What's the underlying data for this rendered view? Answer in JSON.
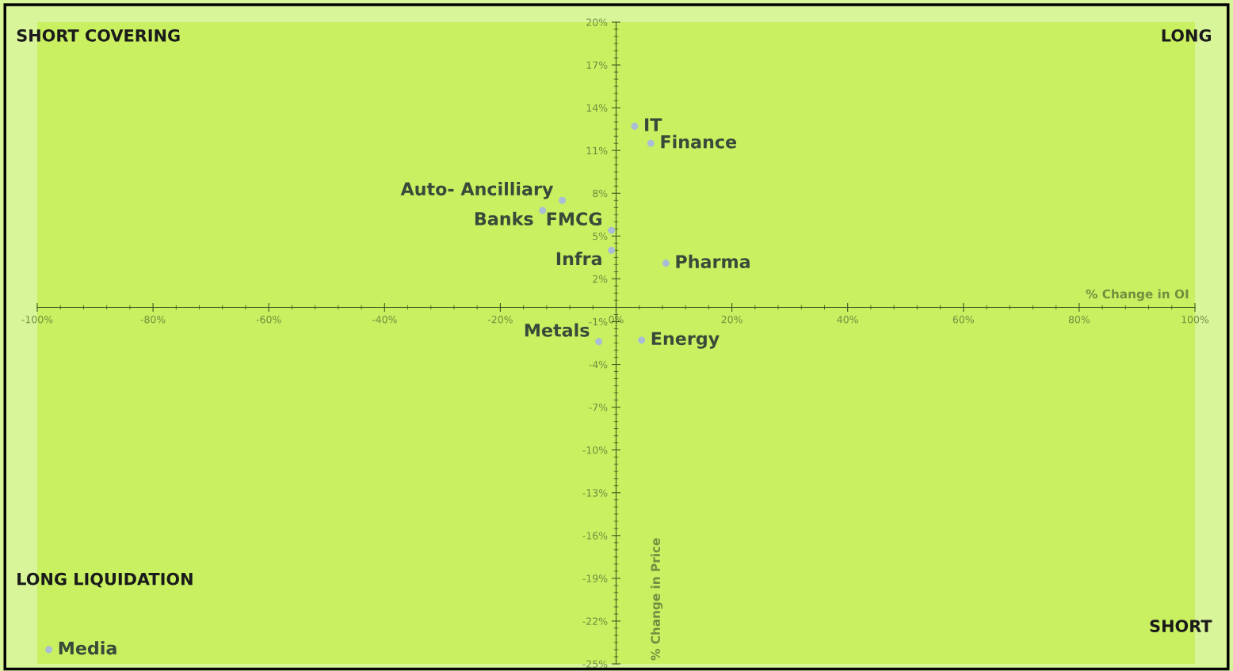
{
  "chart_data": {
    "type": "scatter",
    "xlabel": "% Change in OI",
    "ylabel": "% Change in Price",
    "x": [
      3.2,
      6,
      -9.3,
      -12.7,
      -0.8,
      -0.8,
      8.6,
      -3,
      4.4,
      -98
    ],
    "series": [
      {
        "color": "#a9bdd6",
        "values": [
          12.7,
          11.5,
          7.5,
          6.8,
          5.4,
          4.0,
          3.1,
          -2.4,
          -2.3,
          -24
        ]
      }
    ],
    "value_labels": [
      "IT",
      "Finance",
      "Auto- Ancilliary",
      "Banks",
      "FMCG",
      "Infra",
      "Pharma",
      "Metals",
      "Energy",
      "Media"
    ],
    "marker": "circle",
    "grid": false,
    "legend": false,
    "xlim": [
      -100,
      100
    ],
    "ylim": [
      -25,
      20
    ],
    "xticks": [
      {
        "value": -100,
        "label": "-100%"
      },
      {
        "value": -80,
        "label": "-80%"
      },
      {
        "value": -60,
        "label": "-60%"
      },
      {
        "value": -40,
        "label": "-40%"
      },
      {
        "value": -20,
        "label": "-20%"
      },
      {
        "value": 0,
        "label": "0%"
      },
      {
        "value": 20,
        "label": "20%"
      },
      {
        "value": 40,
        "label": "40%"
      },
      {
        "value": 60,
        "label": "60%"
      },
      {
        "value": 80,
        "label": "80%"
      },
      {
        "value": 100,
        "label": "100%"
      }
    ],
    "yticks": [
      {
        "value": 20,
        "label": "20%"
      },
      {
        "value": 17,
        "label": "17%"
      },
      {
        "value": 14,
        "label": "14%"
      },
      {
        "value": 11,
        "label": "11%"
      },
      {
        "value": 8,
        "label": "8%"
      },
      {
        "value": 5,
        "label": "5%"
      },
      {
        "value": 2,
        "label": "2%"
      },
      {
        "value": -1,
        "label": "-1%"
      },
      {
        "value": -4,
        "label": "-4%"
      },
      {
        "value": -7,
        "label": "-7%"
      },
      {
        "value": -10,
        "label": "-10%"
      },
      {
        "value": -13,
        "label": "-13%"
      },
      {
        "value": -16,
        "label": "-16%"
      },
      {
        "value": -19,
        "label": "-19%"
      },
      {
        "value": -22,
        "label": "-22%"
      },
      {
        "value": -25,
        "label": "-25%"
      }
    ],
    "annotations": [
      "SHORT COVERING",
      "LONG",
      "LONG LIQUIDATION",
      "SHORT"
    ]
  }
}
